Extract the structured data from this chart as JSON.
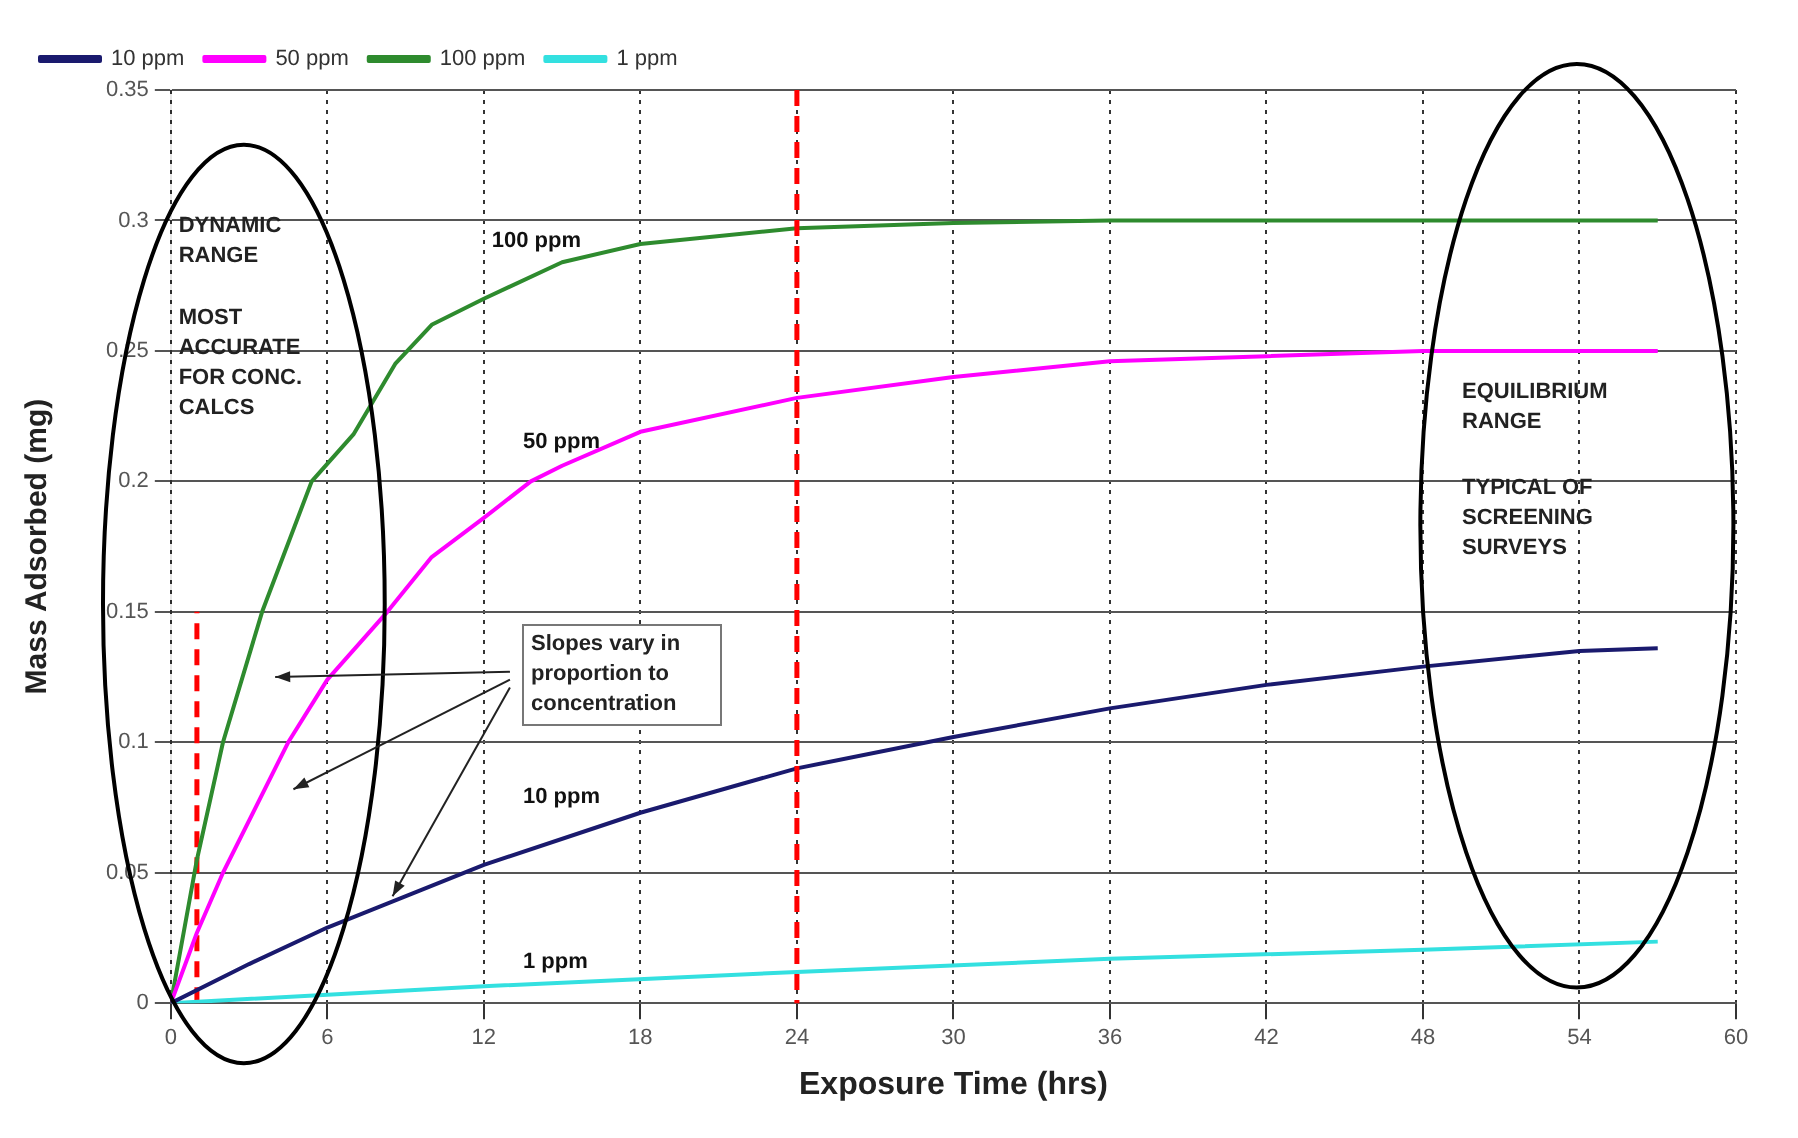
{
  "chart_data": {
    "type": "line",
    "xlabel": "Exposure Time (hrs)",
    "ylabel": "Mass Adsorbed (mg)",
    "xlim": [
      0,
      60
    ],
    "xticks": [
      0,
      6,
      12,
      18,
      24,
      30,
      36,
      42,
      48,
      54,
      60
    ],
    "ylim": [
      0,
      0.35
    ],
    "yticks": [
      0,
      0.05,
      0.1,
      0.15,
      0.2,
      0.25,
      0.3,
      0.35
    ],
    "grid": true,
    "legend": "top",
    "marker": "none",
    "line_style": "solid",
    "series": [
      {
        "name": "10 ppm",
        "color": "#1a1a6e",
        "x": [
          0,
          3,
          6,
          12,
          18,
          24,
          30,
          36,
          42,
          48,
          54,
          57
        ],
        "values": [
          0,
          0.015,
          0.029,
          0.053,
          0.073,
          0.09,
          0.102,
          0.113,
          0.122,
          0.129,
          0.135,
          0.136
        ]
      },
      {
        "name": "50 ppm",
        "color": "#ff00ff",
        "x": [
          0,
          1,
          2,
          4.5,
          6,
          8.3,
          10,
          12,
          13.8,
          15,
          18,
          24,
          30,
          36,
          42,
          48,
          54,
          57
        ],
        "values": [
          0,
          0.027,
          0.05,
          0.1,
          0.124,
          0.15,
          0.171,
          0.186,
          0.2,
          0.206,
          0.219,
          0.232,
          0.24,
          0.246,
          0.248,
          0.25,
          0.25,
          0.25
        ]
      },
      {
        "name": "100 ppm",
        "color": "#2e8b2e",
        "x": [
          0,
          1,
          2,
          3.5,
          5.4,
          7,
          8.6,
          10,
          12,
          15,
          18,
          24,
          30,
          36,
          42,
          48,
          54,
          57
        ],
        "values": [
          0,
          0.055,
          0.1,
          0.15,
          0.2,
          0.218,
          0.245,
          0.26,
          0.27,
          0.284,
          0.291,
          0.297,
          0.299,
          0.3,
          0.3,
          0.3,
          0.3,
          0.3
        ]
      },
      {
        "name": "1 ppm",
        "color": "#33e0e0",
        "x": [
          0,
          12,
          24,
          36,
          48,
          57
        ],
        "values": [
          0,
          0.0065,
          0.012,
          0.017,
          0.0205,
          0.0236
        ]
      },
      {
        "color": "#ff0000",
        "line_style": "dashed",
        "x": [
          1,
          1
        ],
        "values": [
          0,
          0.15
        ]
      }
    ],
    "ref_lines": [
      {
        "axis": "x",
        "value": 24,
        "color": "#ff0000",
        "line_style": "dashed"
      }
    ],
    "annotations": [
      "DYNAMIC RANGE",
      "MOST ACCURATE FOR CONC. CALCS",
      "EQUILIBRIUM RANGE",
      "TYPICAL OF SCREENING SURVEYS",
      {
        "text": "Slopes vary in proportion to concentration",
        "x": 8.5,
        "y": 0.041
      }
    ]
  }
}
